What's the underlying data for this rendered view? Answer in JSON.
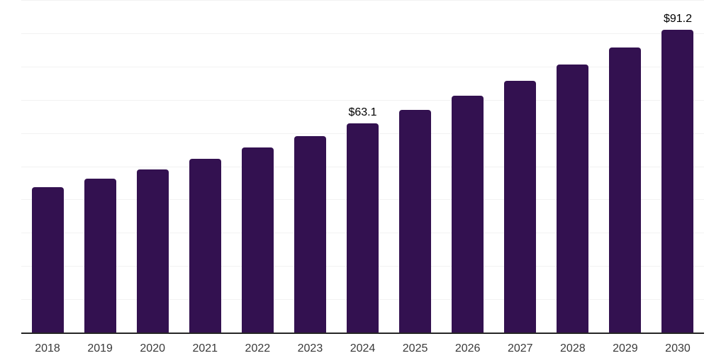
{
  "chart_data": {
    "type": "bar",
    "title": "",
    "xlabel": "",
    "ylabel": "",
    "categories": [
      "2018",
      "2019",
      "2020",
      "2021",
      "2022",
      "2023",
      "2024",
      "2025",
      "2026",
      "2027",
      "2028",
      "2029",
      "2030"
    ],
    "values": [
      44.0,
      46.4,
      49.3,
      52.4,
      55.8,
      59.3,
      63.1,
      67.2,
      71.5,
      75.9,
      80.8,
      86.0,
      91.2
    ],
    "data_labels": [
      {
        "category": "2024",
        "text": "$63.1"
      },
      {
        "category": "2030",
        "text": "$91.2"
      }
    ],
    "ylim": [
      0,
      100
    ],
    "gridline_step": 10,
    "grid": "horizontal-only",
    "y_axis_tick_labels_visible": false,
    "legend": "none"
  },
  "style": {
    "bar_color": "#331150",
    "gridline_color": "#f2f2f2",
    "axis_line_color": "#262626",
    "tick_label_color": "#3a3a3a",
    "data_label_color": "#000000",
    "background_color": "#ffffff"
  }
}
